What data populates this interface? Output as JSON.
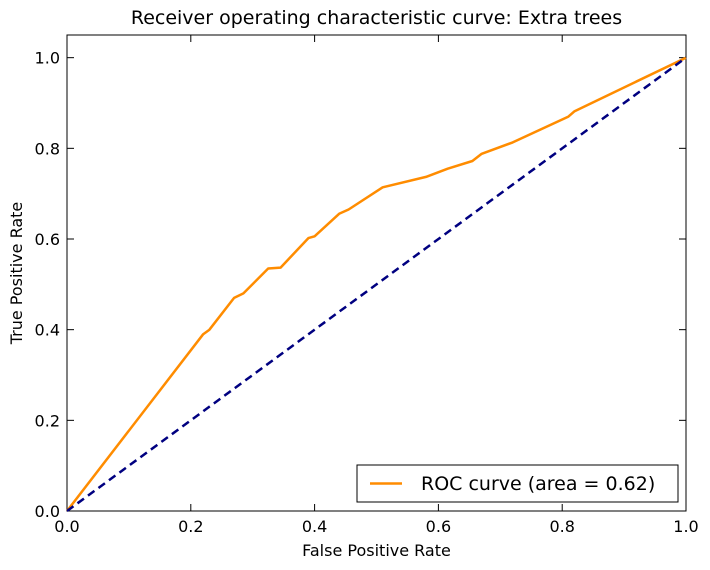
{
  "chart_data": {
    "type": "line",
    "title": "Receiver operating characteristic curve: Extra trees",
    "xlabel": "False Positive Rate",
    "ylabel": "True Positive Rate",
    "xlim": [
      0.0,
      1.0
    ],
    "ylim": [
      0.0,
      1.05
    ],
    "x_ticks": [
      "0.0",
      "0.2",
      "0.4",
      "0.6",
      "0.8",
      "1.0"
    ],
    "y_ticks": [
      "0.0",
      "0.2",
      "0.4",
      "0.6",
      "0.8",
      "1.0"
    ],
    "grid": false,
    "legend_position": "lower-right",
    "series": [
      {
        "name": "ROC curve (area = 0.62)",
        "color": "#ff8c00",
        "line_style": "solid",
        "points": [
          [
            0.0,
            0.0
          ],
          [
            0.22,
            0.39
          ],
          [
            0.23,
            0.4
          ],
          [
            0.27,
            0.47
          ],
          [
            0.285,
            0.48
          ],
          [
            0.325,
            0.535
          ],
          [
            0.345,
            0.537
          ],
          [
            0.39,
            0.602
          ],
          [
            0.4,
            0.606
          ],
          [
            0.44,
            0.656
          ],
          [
            0.455,
            0.665
          ],
          [
            0.51,
            0.714
          ],
          [
            0.58,
            0.737
          ],
          [
            0.615,
            0.755
          ],
          [
            0.655,
            0.772
          ],
          [
            0.67,
            0.788
          ],
          [
            0.72,
            0.813
          ],
          [
            0.81,
            0.87
          ],
          [
            0.82,
            0.882
          ],
          [
            1.0,
            1.0
          ]
        ]
      },
      {
        "color": "#000080",
        "line_style": "dashed",
        "points": [
          [
            0.0,
            0.0
          ],
          [
            1.0,
            1.0
          ]
        ]
      }
    ]
  }
}
